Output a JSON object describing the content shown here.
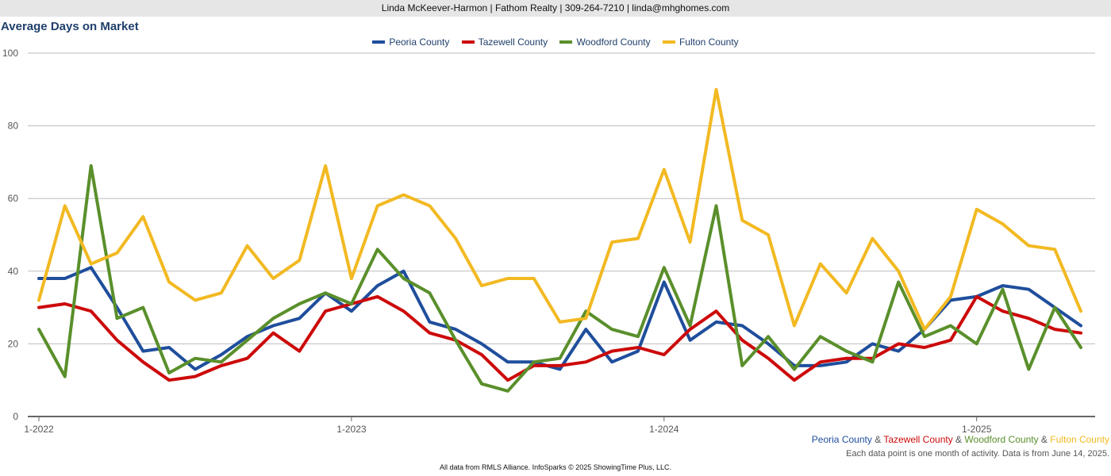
{
  "header": {
    "text": "Linda McKeever-Harmon | Fathom Realty | 309-264-7210 | linda@mhghomes.com"
  },
  "chart_data": {
    "type": "line",
    "title": "Average Days on Market",
    "xlabel": "",
    "ylabel": "",
    "ylim": [
      0,
      100
    ],
    "yticks": [
      0,
      20,
      40,
      60,
      80,
      100
    ],
    "x_tick_labels": [
      "1-2022",
      "1-2023",
      "1-2024",
      "1-2025"
    ],
    "x": [
      "1-2022",
      "2-2022",
      "3-2022",
      "4-2022",
      "5-2022",
      "6-2022",
      "7-2022",
      "8-2022",
      "9-2022",
      "10-2022",
      "11-2022",
      "12-2022",
      "1-2023",
      "2-2023",
      "3-2023",
      "4-2023",
      "5-2023",
      "6-2023",
      "7-2023",
      "8-2023",
      "9-2023",
      "10-2023",
      "11-2023",
      "12-2023",
      "1-2024",
      "2-2024",
      "3-2024",
      "4-2024",
      "5-2024",
      "6-2024",
      "7-2024",
      "8-2024",
      "9-2024",
      "10-2024",
      "11-2024",
      "12-2024",
      "1-2025",
      "2-2025",
      "3-2025",
      "4-2025",
      "5-2025"
    ],
    "grid": true,
    "legend_position": "top-center",
    "series": [
      {
        "name": "Peoria County",
        "color": "#1f4e9c",
        "values": [
          38,
          38,
          41,
          30,
          18,
          19,
          13,
          17,
          22,
          25,
          27,
          34,
          29,
          36,
          40,
          26,
          24,
          20,
          15,
          15,
          13,
          24,
          15,
          18,
          37,
          21,
          26,
          25,
          20,
          14,
          14,
          15,
          20,
          18,
          24,
          32,
          33,
          36,
          35,
          30,
          25
        ]
      },
      {
        "name": "Tazewell County",
        "color": "#cc0a0a",
        "values": [
          30,
          31,
          29,
          21,
          15,
          10,
          11,
          14,
          16,
          23,
          18,
          29,
          31,
          33,
          29,
          23,
          21,
          17,
          10,
          14,
          14,
          15,
          18,
          19,
          17,
          24,
          29,
          21,
          16,
          10,
          15,
          16,
          16,
          20,
          19,
          21,
          33,
          29,
          27,
          24,
          23
        ]
      },
      {
        "name": "Woodford County",
        "color": "#5a8f2b",
        "values": [
          24,
          11,
          69,
          27,
          30,
          12,
          16,
          15,
          21,
          27,
          31,
          34,
          31,
          46,
          38,
          34,
          21,
          9,
          7,
          15,
          16,
          29,
          24,
          22,
          41,
          25,
          58,
          14,
          22,
          13,
          22,
          18,
          15,
          37,
          22,
          25,
          20,
          35,
          13,
          30,
          19
        ]
      },
      {
        "name": "Fulton County",
        "color": "#f2b922",
        "values": [
          32,
          58,
          42,
          45,
          55,
          37,
          32,
          34,
          47,
          38,
          43,
          69,
          38,
          58,
          61,
          58,
          49,
          36,
          38,
          38,
          26,
          27,
          48,
          49,
          68,
          48,
          90,
          54,
          50,
          25,
          42,
          34,
          49,
          40,
          24,
          33,
          57,
          53,
          47,
          46,
          29
        ]
      }
    ]
  },
  "series_caption": {
    "sep": "&"
  },
  "note": "Each data point is one month of activity. Data is from June 14, 2025.",
  "footer": "All data from RMLS Alliance. InfoSparks © 2025 ShowingTime Plus, LLC."
}
